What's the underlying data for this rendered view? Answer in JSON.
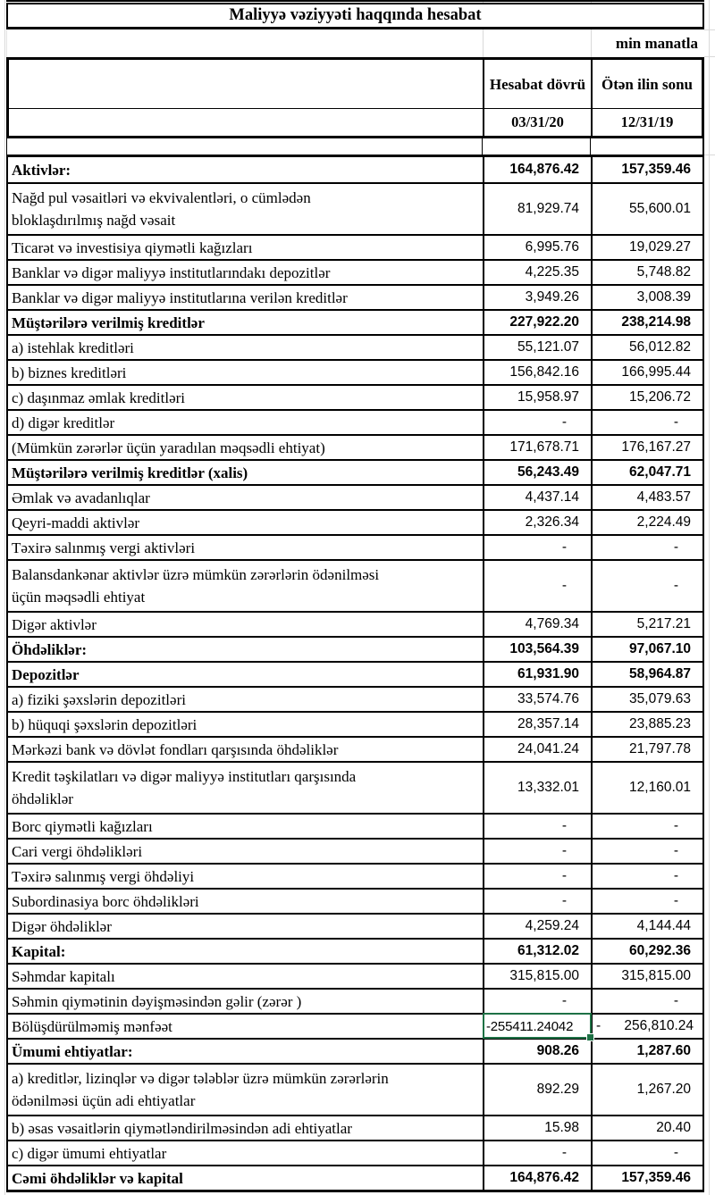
{
  "header": {
    "title": "Maliyyə vəziyyəti haqqında hesabat",
    "unit_note": "min manatla",
    "col_current": "Hesabat dövrü",
    "col_prior": "Ötən ilin sonu",
    "date_current": "03/31/20",
    "date_prior": "12/31/19"
  },
  "colors": {
    "selection_green": "#1E7145",
    "border_black": "#000000",
    "gridline_gray": "#D9D9D9"
  },
  "selection": {
    "cell_row_label": "Bölüşdürülməmiş mənfəət",
    "value": "-255411.24042"
  },
  "rows": [
    {
      "label": "Aktivlər:",
      "v1": "164,876.42",
      "v2": "157,359.46",
      "bold": true
    },
    {
      "label": "Nağd pul vəsaitləri və ekvivalentləri, o cümlədən\nbloklaşdırılmış nağd vəsait",
      "v1": "81,929.74",
      "v2": "55,600.01",
      "tall": true
    },
    {
      "label": "Ticarət və investisiya qiymətli kağızları",
      "v1": "6,995.76",
      "v2": "19,029.27"
    },
    {
      "label": "Banklar və digər maliyyə institutlarındakı depozitlər",
      "v1": "4,225.35",
      "v2": "5,748.82"
    },
    {
      "label": "Banklar və digər maliyyə institutlarına verilən kreditlər",
      "v1": "3,949.26",
      "v2": "3,008.39"
    },
    {
      "label": "Müştərilərə verilmiş kreditlər",
      "v1": "227,922.20",
      "v2": "238,214.98",
      "bold": true
    },
    {
      "label": "a) istehlak kreditləri",
      "v1": "55,121.07",
      "v2": "56,012.82"
    },
    {
      "label": "b) biznes kreditləri",
      "v1": "156,842.16",
      "v2": "166,995.44"
    },
    {
      "label": "c) daşınmaz əmlak kreditləri",
      "v1": "15,958.97",
      "v2": "15,206.72"
    },
    {
      "label": "d) digər kreditlər",
      "v1": "-",
      "v2": "-"
    },
    {
      "label": "(Mümkün zərərlər üçün yaradılan məqsədli ehtiyat)",
      "v1": "171,678.71",
      "v2": "176,167.27"
    },
    {
      "label": "Müştərilərə verilmiş kreditlər (xalis)",
      "v1": "56,243.49",
      "v2": "62,047.71",
      "bold": true
    },
    {
      "label": "Əmlak və avadanlıqlar",
      "v1": "4,437.14",
      "v2": "4,483.57"
    },
    {
      "label": "Qeyri-maddi aktivlər",
      "v1": "2,326.34",
      "v2": "2,224.49"
    },
    {
      "label": "Təxirə salınmış vergi aktivləri",
      "v1": "-",
      "v2": "-"
    },
    {
      "label": "Balansdankənar aktivlər üzrə mümkün zərərlərin ödənilməsi\nüçün məqsədli ehtiyat",
      "v1": "-",
      "v2": "-",
      "tall": true
    },
    {
      "label": "Digər aktivlər",
      "v1": "4,769.34",
      "v2": "5,217.21"
    },
    {
      "label": "Öhdəliklər:",
      "v1": "103,564.39",
      "v2": "97,067.10",
      "bold": true
    },
    {
      "label": "Depozitlər",
      "v1": "61,931.90",
      "v2": "58,964.87",
      "bold": true
    },
    {
      "label": "a) fiziki şəxslərin depozitləri",
      "v1": "33,574.76",
      "v2": "35,079.63"
    },
    {
      "label": "b) hüquqi şəxslərin depozitləri",
      "v1": "28,357.14",
      "v2": "23,885.23"
    },
    {
      "label": "Mərkəzi bank və dövlət fondları qarşısında öhdəliklər",
      "v1": "24,041.24",
      "v2": "21,797.78"
    },
    {
      "label": "Kredit təşkilatları və digər maliyyə institutları qarşısında\nöhdəliklər",
      "v1": "13,332.01",
      "v2": "12,160.01",
      "tall": true
    },
    {
      "label": "Borc qiymətli kağızları",
      "v1": "-",
      "v2": "-"
    },
    {
      "label": "Cari vergi öhdəlikləri",
      "v1": "-",
      "v2": "-"
    },
    {
      "label": "Təxirə salınmış vergi öhdəliyi",
      "v1": "-",
      "v2": "-"
    },
    {
      "label": "Subordinasiya borc öhdəlikləri",
      "v1": "-",
      "v2": "-"
    },
    {
      "label": "Digər öhdəliklər",
      "v1": "4,259.24",
      "v2": "4,144.44"
    },
    {
      "label": "Kapital:",
      "v1": "61,312.02",
      "v2": "60,292.36",
      "bold": true
    },
    {
      "label": "Səhmdar kapitalı",
      "v1": "315,815.00",
      "v2": "315,815.00"
    },
    {
      "label": "Səhmin qiymətinin dəyişməsindən gəlir (zərər )",
      "v1": "-",
      "v2": "-"
    },
    {
      "label": "Bölüşdürülməmiş mənfəət",
      "v1": "-255411.24042",
      "v1_selected": true,
      "v2": "256,810.24",
      "v2_minus": "-"
    },
    {
      "label": "Ümumi ehtiyatlar:",
      "v1": "908.26",
      "v2": "1,287.60",
      "bold": true
    },
    {
      "label": "a) kreditlər, lizinqlər və digər tələblər üzrə mümkün zərərlərin\nödənilməsi üçün adi ehtiyatlar",
      "v1": "892.29",
      "v2": "1,267.20",
      "tall": true
    },
    {
      "label": "b) əsas vəsaitlərin qiymətləndirilməsindən adi ehtiyatlar",
      "v1": "15.98",
      "v2": "20.40"
    },
    {
      "label": "c) digər ümumi ehtiyatlar",
      "v1": "-",
      "v2": "-"
    },
    {
      "label": "Cəmi öhdəliklər və kapital",
      "v1": "164,876.42",
      "v2": "157,359.46",
      "bold": true
    }
  ]
}
